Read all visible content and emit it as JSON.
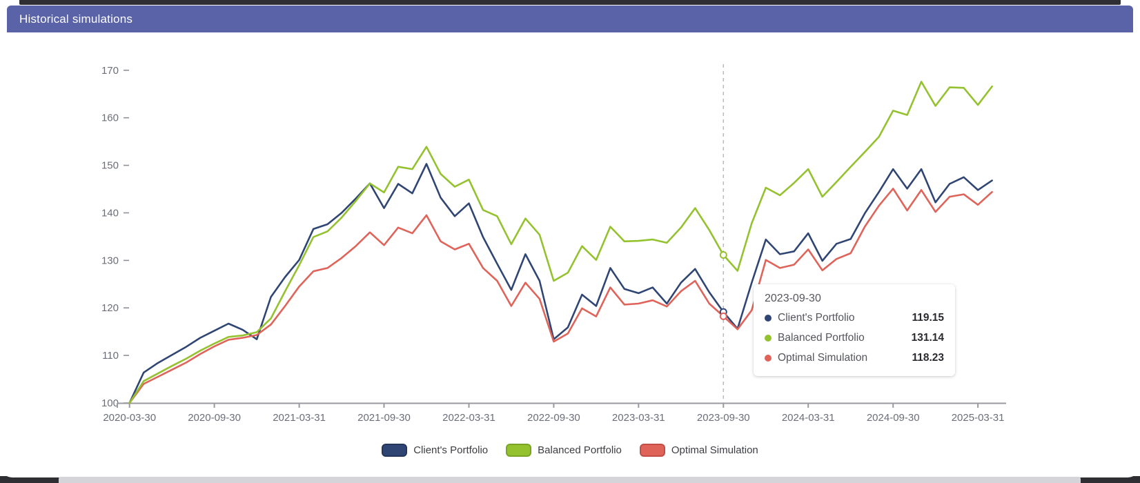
{
  "header": {
    "title": "Historical simulations",
    "bar_color": "#5a63a8"
  },
  "colors": {
    "client": "#2f4574",
    "balanced": "#94c22e",
    "optimal": "#e0635a",
    "axis_text": "#6b6e78"
  },
  "chart_data": {
    "type": "line",
    "title": "Historical simulations",
    "xlabel": "",
    "ylabel": "",
    "ylim": [
      100,
      172
    ],
    "grid": false,
    "legend_position": "bottom-center",
    "y_ticks": [
      100,
      110,
      120,
      130,
      140,
      150,
      160,
      170
    ],
    "x_tick_labels": [
      "2020-03-30",
      "2020-09-30",
      "2021-03-31",
      "2021-09-30",
      "2022-03-31",
      "2022-09-30",
      "2023-03-31",
      "2023-09-30",
      "2024-03-31",
      "2024-09-30",
      "2025-03-31"
    ],
    "x": [
      "2020-03-30",
      "2020-04",
      "2020-05",
      "2020-06",
      "2020-07",
      "2020-08",
      "2020-09-30",
      "2020-10",
      "2020-11",
      "2020-12",
      "2021-01",
      "2021-02",
      "2021-03-31",
      "2021-04",
      "2021-05",
      "2021-06",
      "2021-07",
      "2021-08",
      "2021-09-30",
      "2021-10",
      "2021-11",
      "2021-12",
      "2022-01",
      "2022-02",
      "2022-03-31",
      "2022-04",
      "2022-05",
      "2022-06",
      "2022-07",
      "2022-08",
      "2022-09-30",
      "2022-10",
      "2022-11",
      "2022-12",
      "2023-01",
      "2023-02",
      "2023-03-31",
      "2023-04",
      "2023-05",
      "2023-06",
      "2023-07",
      "2023-08",
      "2023-09-30",
      "2023-10",
      "2023-11",
      "2023-12",
      "2024-01",
      "2024-02",
      "2024-03-31",
      "2024-04",
      "2024-05",
      "2024-06",
      "2024-07",
      "2024-08",
      "2024-09-30",
      "2024-10",
      "2024-11",
      "2024-12",
      "2025-01",
      "2025-02",
      "2025-03-31",
      "2025-04"
    ],
    "series": [
      {
        "name": "Client's Portfolio",
        "color": "#2f4574",
        "values": [
          100,
          106.4,
          108.4,
          110.1,
          111.8,
          113.7,
          115.2,
          116.7,
          115.4,
          113.4,
          122.3,
          126.5,
          130.1,
          136.6,
          137.6,
          140.0,
          143.0,
          146.2,
          141.0,
          146.1,
          144.1,
          150.3,
          143.2,
          139.3,
          142.0,
          134.9,
          129.3,
          123.8,
          131.3,
          125.7,
          113.4,
          115.9,
          122.8,
          120.4,
          128.4,
          124.0,
          123.1,
          124.3,
          120.9,
          125.3,
          128.2,
          123.3,
          119.15,
          115.6,
          125.3,
          134.4,
          131.3,
          131.9,
          135.7,
          129.9,
          133.5,
          134.5,
          139.9,
          144.4,
          149.2,
          145.1,
          149.2,
          142.2,
          146.1,
          147.5,
          144.8,
          146.8
        ]
      },
      {
        "name": "Balanced Portfolio",
        "color": "#94c22e",
        "values": [
          100,
          104.6,
          106.2,
          107.8,
          109.3,
          111.0,
          112.5,
          113.9,
          114.2,
          114.9,
          117.8,
          123.5,
          129.0,
          134.9,
          136.1,
          139.0,
          142.5,
          146.2,
          144.3,
          149.7,
          149.2,
          153.9,
          148.2,
          145.5,
          147.0,
          140.6,
          139.3,
          133.4,
          138.8,
          135.4,
          125.7,
          127.4,
          133.0,
          130.1,
          137.1,
          134.0,
          134.1,
          134.4,
          133.7,
          136.9,
          141.0,
          136.4,
          131.14,
          127.8,
          137.8,
          145.3,
          143.7,
          146.3,
          149.2,
          143.4,
          146.5,
          149.7,
          152.8,
          156.0,
          161.5,
          160.6,
          167.6,
          162.5,
          166.4,
          166.3,
          162.7,
          166.6
        ]
      },
      {
        "name": "Optimal Simulation",
        "color": "#e0635a",
        "values": [
          100,
          104.0,
          105.5,
          107.0,
          108.5,
          110.3,
          111.9,
          113.3,
          113.7,
          114.3,
          116.5,
          120.4,
          124.5,
          127.7,
          128.4,
          130.5,
          133.0,
          135.9,
          133.2,
          136.9,
          135.7,
          139.5,
          134.0,
          132.3,
          133.5,
          128.4,
          125.7,
          120.4,
          125.3,
          121.9,
          112.9,
          114.6,
          119.9,
          118.2,
          124.3,
          120.7,
          120.9,
          121.6,
          120.3,
          123.5,
          125.7,
          120.9,
          118.23,
          115.5,
          119.5,
          130.1,
          128.4,
          129.1,
          132.3,
          127.9,
          130.3,
          131.5,
          137.1,
          141.5,
          145.1,
          140.5,
          144.8,
          140.2,
          143.4,
          143.9,
          141.7,
          144.4
        ]
      }
    ],
    "hover": {
      "index": 42,
      "date": "2023-09-30"
    }
  },
  "tooltip": {
    "date": "2023-09-30",
    "rows": [
      {
        "label": "Client's Portfolio",
        "value": "119.15",
        "color": "#2f4574"
      },
      {
        "label": "Balanced Portfolio",
        "value": "131.14",
        "color": "#94c22e"
      },
      {
        "label": "Optimal Simulation",
        "value": "118.23",
        "color": "#e0635a"
      }
    ]
  },
  "legend": {
    "items": [
      {
        "label": "Client's Portfolio",
        "color": "#2f4574",
        "border": "#24365c"
      },
      {
        "label": "Balanced Portfolio",
        "color": "#94c22e",
        "border": "#7ba324"
      },
      {
        "label": "Optimal Simulation",
        "color": "#e0635a",
        "border": "#c14f47"
      }
    ]
  }
}
